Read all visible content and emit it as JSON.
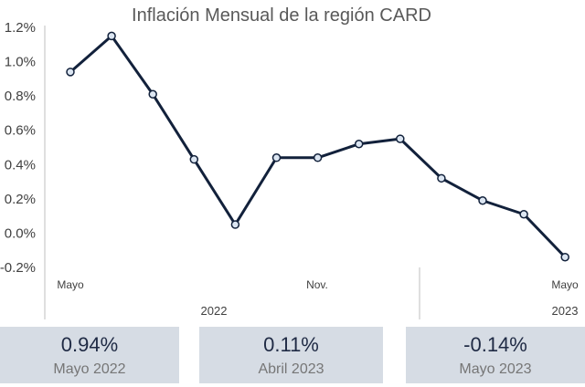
{
  "chart_data": {
    "type": "line",
    "title": "Inflación Mensual de la región CARD",
    "y_ticks": [
      "1.2%",
      "1.0%",
      "0.8%",
      "0.6%",
      "0.4%",
      "0.2%",
      "0.0%",
      "-0.2%"
    ],
    "ylim": [
      -0.2,
      1.2
    ],
    "x_labels": [
      "Mayo",
      "Nov.",
      "Mayo"
    ],
    "year_labels": [
      "2022",
      "2023"
    ],
    "values": [
      0.94,
      1.15,
      0.81,
      0.43,
      0.05,
      0.44,
      0.44,
      0.52,
      0.55,
      0.32,
      0.19,
      0.11,
      -0.14
    ],
    "grid": false,
    "line_color": "#12213b"
  },
  "cards": [
    {
      "value": "0.94%",
      "label": "Mayo 2022"
    },
    {
      "value": "0.11%",
      "label": "Abril 2023"
    },
    {
      "value": "-0.14%",
      "label": "Mayo 2023"
    }
  ]
}
